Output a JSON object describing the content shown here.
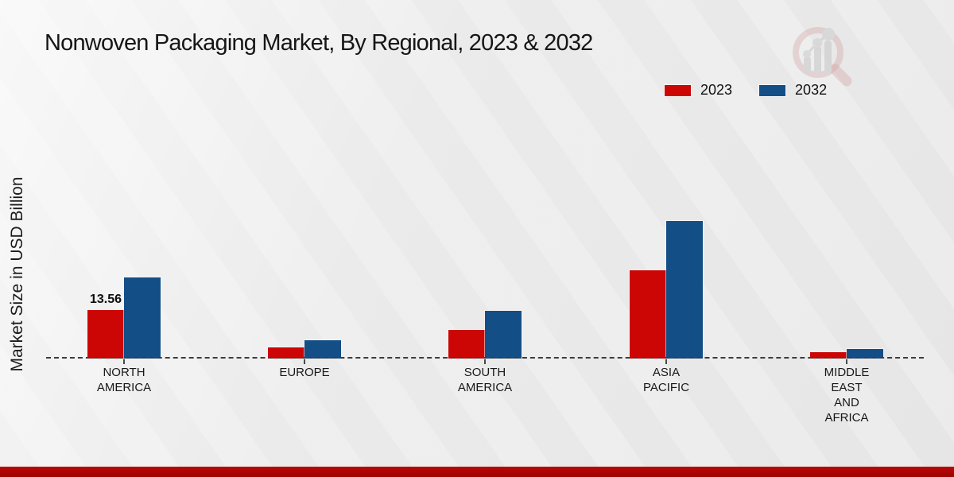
{
  "title": "Nonwoven Packaging Market, By Regional, 2023 & 2032",
  "y_axis_label": "Market Size in USD Billion",
  "legend": {
    "items": [
      {
        "label": "2023",
        "color": "#cc0605"
      },
      {
        "label": "2032",
        "color": "#134e87"
      }
    ],
    "position": "top-right"
  },
  "chart_data": {
    "type": "bar",
    "title": "Nonwoven Packaging Market, By Regional, 2023 & 2032",
    "xlabel": "",
    "ylabel": "Market Size in USD Billion",
    "unit": "USD Billion",
    "grid": false,
    "legend_position": "top-right",
    "baseline": "dashed zero line",
    "categories": [
      "North America",
      "Europe",
      "South America",
      "Asia Pacific",
      "Middle East and Africa"
    ],
    "categories_display": [
      [
        "NORTH",
        "AMERICA"
      ],
      [
        "EUROPE"
      ],
      [
        "SOUTH",
        "AMERICA"
      ],
      [
        "ASIA",
        "PACIFIC"
      ],
      [
        "MIDDLE",
        "EAST",
        "AND",
        "AFRICA"
      ]
    ],
    "series": [
      {
        "name": "2023",
        "color": "#cc0605",
        "values": [
          13.56,
          3.1,
          8.0,
          24.7,
          1.8
        ]
      },
      {
        "name": "2032",
        "color": "#134e87",
        "values": [
          22.6,
          5.2,
          13.4,
          38.4,
          2.7
        ]
      }
    ],
    "data_labels": [
      {
        "series": "2023",
        "category": "North America",
        "text": "13.56"
      }
    ],
    "ylim": [
      0,
      45
    ]
  },
  "watermark": {
    "name": "magnifier-bar-chart-logo"
  },
  "footer": {
    "color": "#bb0606"
  }
}
